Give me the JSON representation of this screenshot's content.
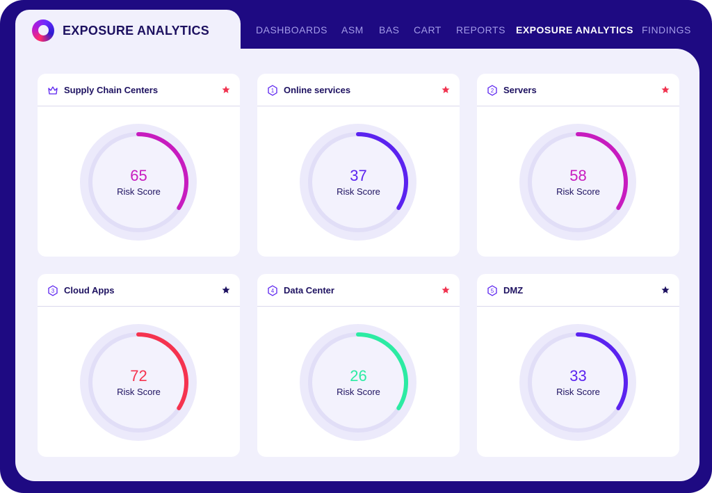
{
  "app": {
    "brand": "EXPOSURE ANALYTICS"
  },
  "nav": {
    "items": [
      {
        "label": "DASHBOARDS",
        "active": false
      },
      {
        "label": "ASM",
        "active": false
      },
      {
        "label": "BAS",
        "active": false
      },
      {
        "label": "CART",
        "active": false
      },
      {
        "label": "REPORTS",
        "active": false
      },
      {
        "label": "EXPOSURE ANALYTICS",
        "active": true
      },
      {
        "label": "FINDINGS",
        "active": false
      }
    ]
  },
  "cards": [
    {
      "title": "Supply Chain Centers",
      "icon": "crown-icon",
      "badge": "",
      "favorite_color": "#f0334f",
      "score": 65,
      "score_label": "Risk Score",
      "arc_color": "#c71cbf",
      "arc_fraction": 0.34
    },
    {
      "title": "Online services",
      "icon": "hexagon-number-icon",
      "badge": "1",
      "favorite_color": "#f0334f",
      "score": 37,
      "score_label": "Risk Score",
      "arc_color": "#5b23ef",
      "arc_fraction": 0.34
    },
    {
      "title": "Servers",
      "icon": "hexagon-number-icon",
      "badge": "2",
      "favorite_color": "#f0334f",
      "score": 58,
      "score_label": "Risk Score",
      "arc_color": "#c71cbf",
      "arc_fraction": 0.34
    },
    {
      "title": "Cloud Apps",
      "icon": "hexagon-number-icon",
      "badge": "3",
      "favorite_color": "#1d1160",
      "score": 72,
      "score_label": "Risk Score",
      "arc_color": "#f5334f",
      "arc_fraction": 0.34
    },
    {
      "title": "Data Center",
      "icon": "hexagon-number-icon",
      "badge": "4",
      "favorite_color": "#f0334f",
      "score": 26,
      "score_label": "Risk Score",
      "arc_color": "#2ceba3",
      "arc_fraction": 0.34
    },
    {
      "title": "DMZ",
      "icon": "hexagon-number-icon",
      "badge": "5",
      "favorite_color": "#1d1160",
      "score": 33,
      "score_label": "Risk Score",
      "arc_color": "#5b23ef",
      "arc_fraction": 0.34
    }
  ],
  "colors": {
    "frame": "#1e0a82",
    "panel": "#f1f0fc",
    "text_dark": "#1d1160",
    "icon_purple": "#5b23ef"
  }
}
